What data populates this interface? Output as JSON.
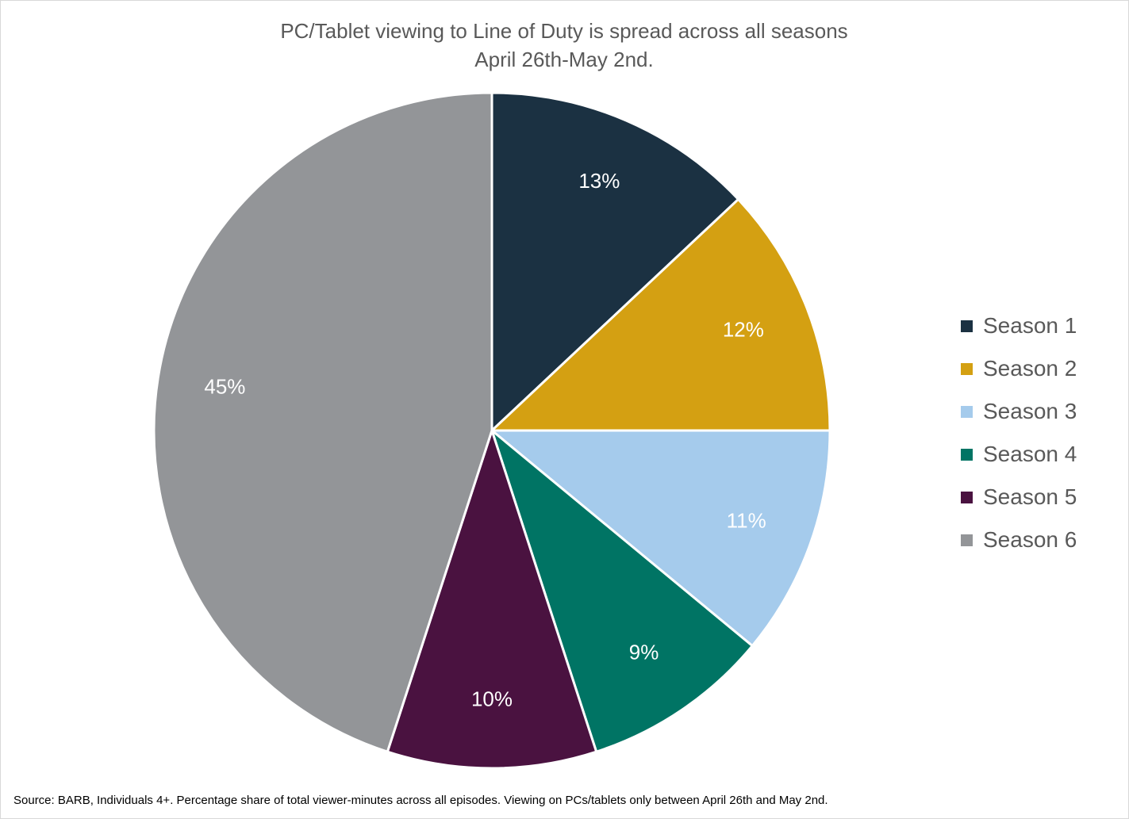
{
  "chart_data": {
    "type": "pie",
    "title": "PC/Tablet viewing to Line of Duty is spread across all seasons",
    "subtitle": "April 26th-May 2nd.",
    "categories": [
      "Season 1",
      "Season 2",
      "Season 3",
      "Season 4",
      "Season 5",
      "Season 6"
    ],
    "values": [
      13,
      12,
      11,
      9,
      10,
      45
    ],
    "labels": [
      "13%",
      "12%",
      "11%",
      "9%",
      "10%",
      "45%"
    ],
    "colors": [
      "#1b3142",
      "#d4a012",
      "#a5cbec",
      "#007464",
      "#4a1240",
      "#939598"
    ],
    "legend_position": "right"
  },
  "footer": {
    "source": "Source: BARB, Individuals 4+. Percentage share of total viewer-minutes across all episodes.  Viewing on PCs/tablets only between April 26th and May 2nd."
  }
}
